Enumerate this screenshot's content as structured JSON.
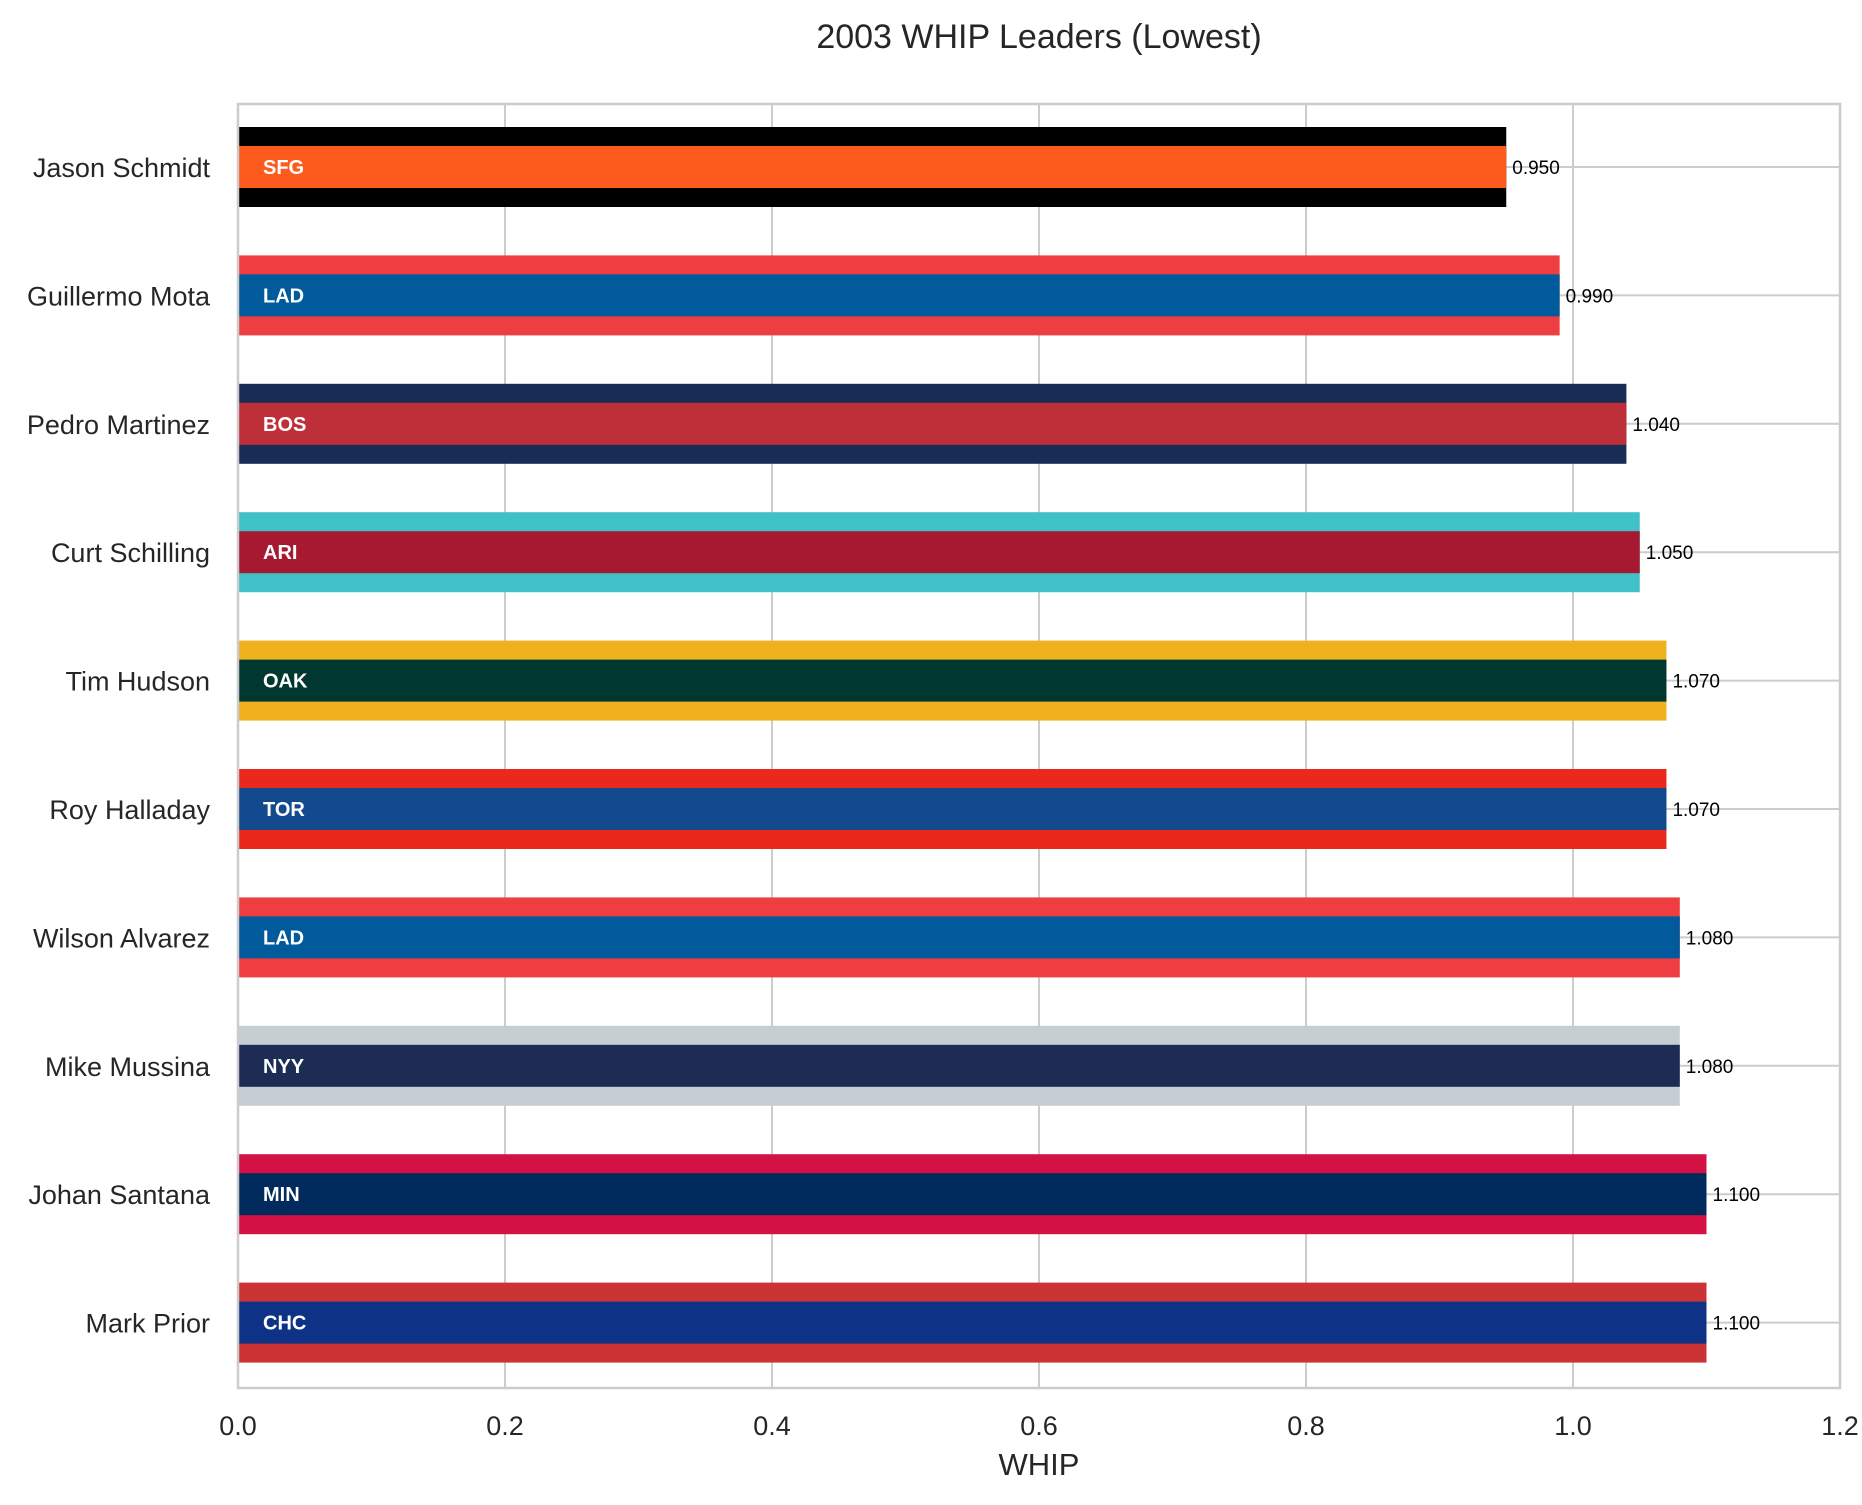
{
  "chart_data": {
    "type": "bar",
    "orientation": "horizontal",
    "title": "2003 WHIP Leaders (Lowest)",
    "xlabel": "WHIP",
    "ylabel": "",
    "xlim": [
      0,
      1.2
    ],
    "xticks": [
      "0.0",
      "0.2",
      "0.4",
      "0.6",
      "0.8",
      "1.0",
      "1.2"
    ],
    "grid": true,
    "legend": "none",
    "bars": [
      {
        "player": "Jason Schmidt",
        "team": "SFG",
        "value": 0.95,
        "label": "0.950",
        "primary": "#FD5A1E",
        "secondary": "#000000"
      },
      {
        "player": "Guillermo Mota",
        "team": "LAD",
        "value": 0.99,
        "label": "0.990",
        "primary": "#005A9C",
        "secondary": "#EF3E42"
      },
      {
        "player": "Pedro Martinez",
        "team": "BOS",
        "value": 1.04,
        "label": "1.040",
        "primary": "#BD3039",
        "secondary": "#192C55"
      },
      {
        "player": "Curt Schilling",
        "team": "ARI",
        "value": 1.05,
        "label": "1.050",
        "primary": "#A71930",
        "secondary": "#40C1C8"
      },
      {
        "player": "Tim Hudson",
        "team": "OAK",
        "value": 1.07,
        "label": "1.070",
        "primary": "#003831",
        "secondary": "#EFB21E"
      },
      {
        "player": "Roy Halladay",
        "team": "TOR",
        "value": 1.07,
        "label": "1.070",
        "primary": "#134A8E",
        "secondary": "#E8291C"
      },
      {
        "player": "Wilson Alvarez",
        "team": "LAD",
        "value": 1.08,
        "label": "1.080",
        "primary": "#005A9C",
        "secondary": "#EF3E42"
      },
      {
        "player": "Mike Mussina",
        "team": "NYY",
        "value": 1.08,
        "label": "1.080",
        "primary": "#1C2C55",
        "secondary": "#C4CED3"
      },
      {
        "player": "Johan Santana",
        "team": "MIN",
        "value": 1.1,
        "label": "1.100",
        "primary": "#002B5C",
        "secondary": "#D31145"
      },
      {
        "player": "Mark Prior",
        "team": "CHC",
        "value": 1.1,
        "label": "1.100",
        "primary": "#0E3386",
        "secondary": "#CC3433"
      }
    ]
  }
}
